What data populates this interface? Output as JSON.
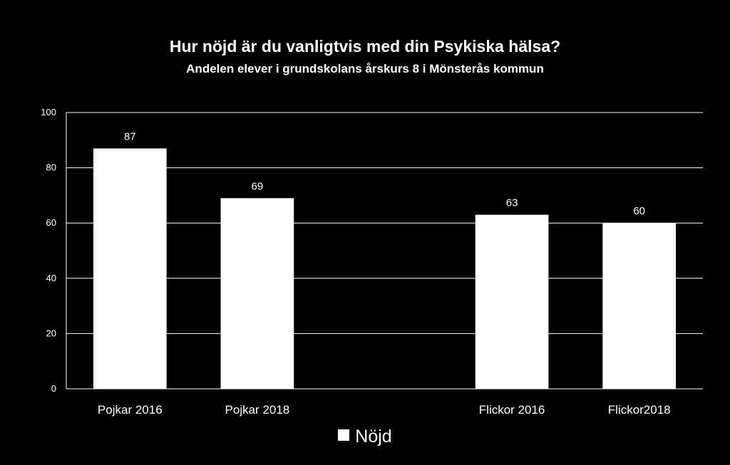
{
  "chart_data": {
    "type": "bar",
    "title": "Hur nöjd är du vanligtvis med din Psykiska hälsa?",
    "subtitle": "Andelen elever i grundskolans årskurs 8 i Mönsterås kommun",
    "categories": [
      "Pojkar 2016",
      "Pojkar 2018",
      "",
      "Flickor 2016",
      "Flickor2018"
    ],
    "series": [
      {
        "name": "Nöjd",
        "values": [
          87,
          69,
          null,
          63,
          60
        ],
        "color": "#ffffff"
      }
    ],
    "ylim": [
      0,
      100
    ],
    "yticks": [
      0,
      20,
      40,
      60,
      80,
      100
    ],
    "grid": true,
    "legend": "bottom",
    "background": "#000000",
    "gridline_color": "#ffffff"
  }
}
